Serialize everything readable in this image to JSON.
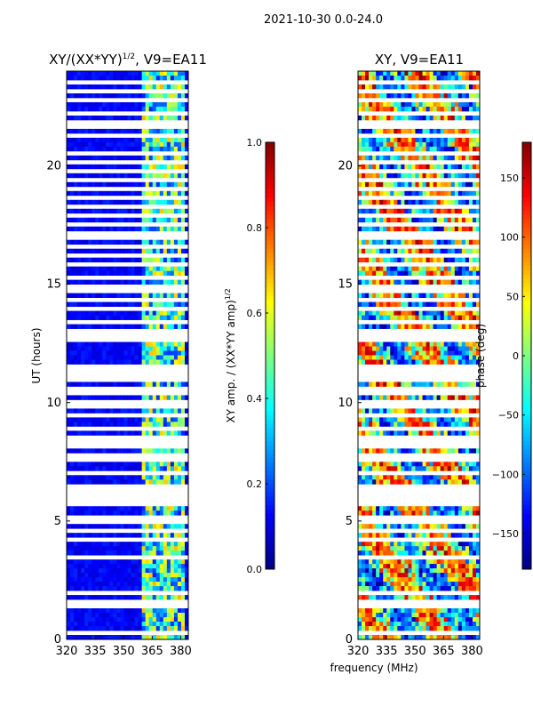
{
  "figure_title": "2021-10-30 0.0-24.0",
  "shared_xlabel": "frequency (MHz)",
  "chart_data": [
    {
      "type": "heatmap",
      "title_main": "XY/(XX*YY)",
      "title_sup": "1/2",
      "title_tail": ", V9=EA11",
      "ylabel": "UT (hours)",
      "xlim": [
        320,
        384
      ],
      "ylim": [
        0,
        24
      ],
      "xticks": [
        320,
        335,
        350,
        365,
        380
      ],
      "yticks": [
        0,
        5,
        10,
        15,
        20
      ],
      "active_band": [
        360,
        383
      ],
      "colorbar": {
        "label_main": "XY amp. / (XX*YY amp)",
        "label_sup": "1/2",
        "range": [
          0.0,
          1.0
        ],
        "ticks": [
          "0.0",
          "0.2",
          "0.4",
          "0.6",
          "0.8",
          "1.0"
        ],
        "tick_values": [
          0.0,
          0.2,
          0.4,
          0.6,
          0.8,
          1.0
        ]
      }
    },
    {
      "type": "heatmap",
      "title": "XY, V9=EA11",
      "xlim": [
        320,
        384
      ],
      "ylim": [
        0,
        24
      ],
      "xticks": [
        320,
        335,
        350,
        365,
        380
      ],
      "yticks": [
        0,
        5,
        10,
        15,
        20
      ],
      "colorbar": {
        "label": "phase (deg)",
        "range": [
          -180,
          180
        ],
        "ticks": [
          "150",
          "100",
          "50",
          "0",
          "−50",
          "−100",
          "−150"
        ],
        "tick_values": [
          150,
          100,
          50,
          0,
          -50,
          -100,
          -150
        ]
      }
    }
  ],
  "flagged_gaps_hours": [
    0.3,
    0.55,
    1.4,
    1.6,
    1.95,
    2.05,
    3.45,
    3.55,
    4.25,
    4.6,
    4.9,
    5.2,
    5.45,
    5.7,
    5.95,
    6.1,
    6.3,
    6.5,
    6.75,
    7.0,
    7.3,
    7.55,
    7.8,
    8.1,
    8.3,
    8.5,
    8.8,
    8.95,
    9.2,
    9.5,
    9.85,
    10.1,
    10.35,
    10.6,
    10.9,
    11.1,
    11.4,
    11.55,
    12.7,
    12.85,
    13.05,
    13.4,
    13.7,
    14.0,
    14.3,
    14.65,
    14.95,
    15.3,
    15.55,
    15.9,
    16.2,
    16.55,
    16.9,
    17.2,
    17.55,
    17.9,
    18.25,
    18.6,
    19.0,
    19.4,
    19.8,
    20.2,
    20.6,
    21.0,
    21.3,
    21.6,
    21.9,
    22.2,
    22.5,
    22.75,
    23.15,
    23.55,
    23.8
  ]
}
